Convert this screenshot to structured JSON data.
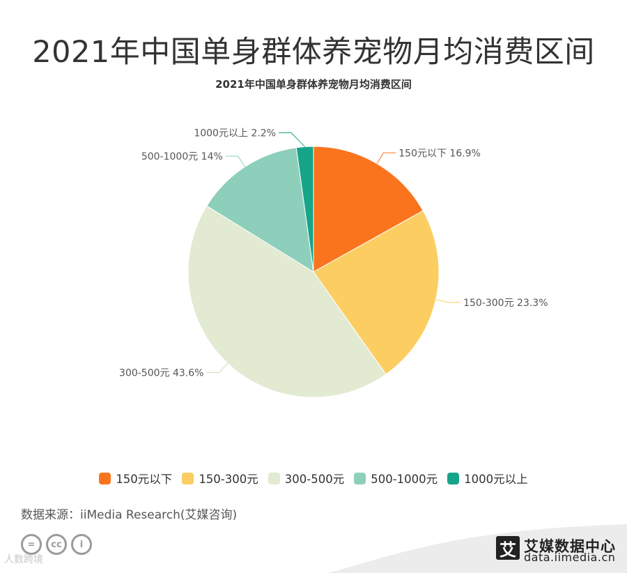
{
  "page": {
    "main_title": "2021年中国单身群体养宠物月均消费区间",
    "source": "数据来源：iiMedia Research(艾媒咨询)",
    "watermark": "人数跨境"
  },
  "brand": {
    "logo_char": "艾",
    "name": "艾媒数据中心",
    "url": "data.iimedia.cn",
    "license_icons": [
      "equals-icon",
      "cc-icon",
      "person-icon"
    ],
    "license_labels": [
      "=",
      "cc",
      "i"
    ]
  },
  "chart_data": {
    "type": "pie",
    "title": "2021年中国单身群体养宠物月均消费区间",
    "start_angle": "top, clockwise",
    "legend_position": "bottom",
    "slices": [
      {
        "label": "150元以下",
        "value": 16.9,
        "value_label": "16.9%",
        "color": "#FA741E"
      },
      {
        "label": "150-300元",
        "value": 23.3,
        "value_label": "23.3%",
        "color": "#FCCE62"
      },
      {
        "label": "300-500元",
        "value": 43.6,
        "value_label": "43.6%",
        "color": "#E2EAD2"
      },
      {
        "label": "500-1000元",
        "value": 14,
        "value_label": "14%",
        "color": "#8DCFBA"
      },
      {
        "label": "1000元以上",
        "value": 2.2,
        "value_label": "2.2%",
        "color": "#17A58A"
      }
    ]
  }
}
